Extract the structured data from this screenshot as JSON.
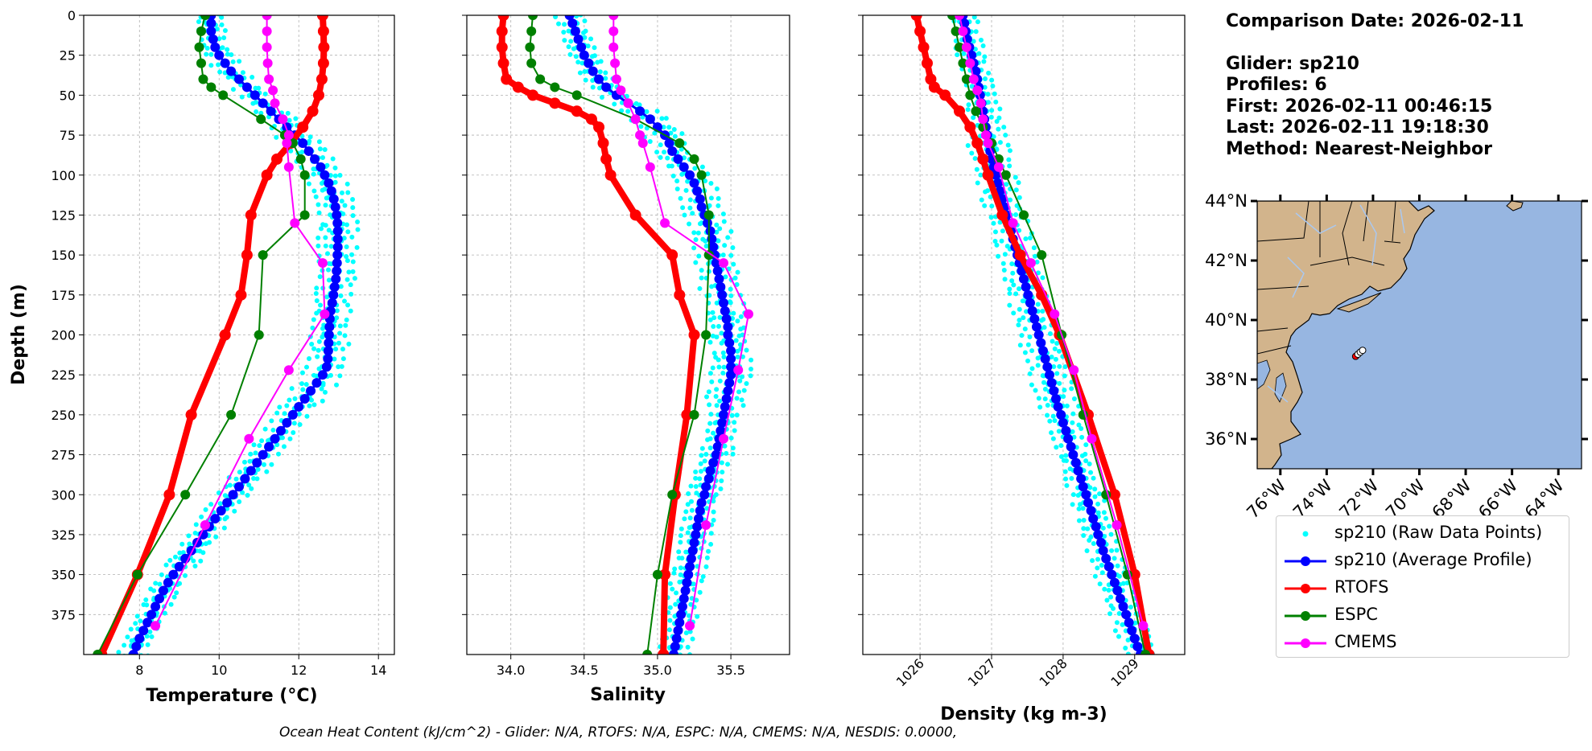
{
  "info": {
    "comparison": "Comparison Date: 2026-02-11",
    "glider": "Glider: sp210",
    "profiles": "Profiles: 6",
    "first": "First: 2026-02-11 00:46:15",
    "last": "Last: 2026-02-11 19:18:30",
    "method": "Method: Nearest-Neighbor"
  },
  "footer": "Ocean Heat Content (kJ/cm^2) - Glider: N/A,  RTOFS: N/A,  ESPC: N/A,  CMEMS: N/A,  NESDIS: 0.0000,",
  "colors": {
    "raw": "#00ffff",
    "glider": "#0000ff",
    "rtofs": "#ff0000",
    "espc": "#008000",
    "cmems": "#ff00ff",
    "land": "#d2b48c",
    "ocean": "#97b6e1",
    "rivers": "#aac8f0"
  },
  "legend": [
    {
      "key": "raw",
      "label": "sp210 (Raw Data Points)",
      "style": "dots"
    },
    {
      "key": "glider",
      "label": "sp210 (Average Profile)",
      "style": "line"
    },
    {
      "key": "rtofs",
      "label": "RTOFS",
      "style": "line"
    },
    {
      "key": "espc",
      "label": "ESPC",
      "style": "line"
    },
    {
      "key": "cmems",
      "label": "CMEMS",
      "style": "line"
    }
  ],
  "chart_data": [
    {
      "type": "line",
      "xlabel": "Temperature (°C)",
      "ylabel": "Depth (m)",
      "xlim": [
        6.6,
        14.4
      ],
      "ylim": [
        400,
        0
      ],
      "xticks": [
        8,
        10,
        12,
        14
      ],
      "yticks": [
        0,
        25,
        50,
        75,
        100,
        125,
        150,
        175,
        200,
        225,
        250,
        275,
        300,
        325,
        350,
        375
      ],
      "grid": true,
      "series": [
        {
          "name": "sp210 (Average Profile)",
          "key": "glider",
          "width": 3,
          "marker": 6,
          "depth": [
            0,
            5,
            10,
            15,
            20,
            25,
            30,
            35,
            40,
            45,
            50,
            55,
            60,
            65,
            70,
            75,
            80,
            85,
            90,
            95,
            100,
            105,
            110,
            115,
            120,
            125,
            130,
            135,
            140,
            145,
            150,
            155,
            160,
            165,
            170,
            175,
            180,
            185,
            190,
            195,
            200,
            205,
            210,
            215,
            220,
            225,
            230,
            235,
            240,
            245,
            250,
            255,
            260,
            265,
            270,
            275,
            280,
            285,
            290,
            295,
            300,
            305,
            310,
            315,
            320,
            325,
            330,
            335,
            340,
            345,
            350,
            355,
            360,
            365,
            370,
            375,
            380,
            385,
            390,
            395,
            400
          ],
          "values": [
            9.8,
            9.8,
            9.8,
            9.85,
            9.9,
            10.0,
            10.15,
            10.3,
            10.5,
            10.7,
            10.9,
            11.1,
            11.3,
            11.5,
            11.7,
            11.9,
            12.1,
            12.25,
            12.4,
            12.55,
            12.65,
            12.75,
            12.82,
            12.88,
            12.92,
            12.95,
            12.97,
            12.98,
            12.98,
            12.98,
            12.97,
            12.96,
            12.95,
            12.93,
            12.9,
            12.87,
            12.84,
            12.8,
            12.78,
            12.77,
            12.76,
            12.75,
            12.74,
            12.73,
            12.7,
            12.6,
            12.45,
            12.3,
            12.15,
            12.0,
            11.85,
            11.7,
            11.55,
            11.4,
            11.25,
            11.1,
            10.95,
            10.8,
            10.65,
            10.5,
            10.35,
            10.2,
            10.05,
            9.9,
            9.75,
            9.6,
            9.45,
            9.3,
            9.15,
            9.0,
            8.85,
            8.72,
            8.6,
            8.5,
            8.4,
            8.3,
            8.2,
            8.1,
            8.0,
            7.92,
            7.85
          ]
        },
        {
          "name": "RTOFS",
          "key": "rtofs",
          "width": 8,
          "marker": 7,
          "depth": [
            0,
            10,
            20,
            30,
            40,
            50,
            60,
            70,
            80,
            90,
            100,
            125,
            150,
            175,
            200,
            250,
            300,
            350,
            400
          ],
          "values": [
            12.6,
            12.62,
            12.63,
            12.62,
            12.58,
            12.5,
            12.35,
            12.1,
            11.8,
            11.45,
            11.2,
            10.8,
            10.7,
            10.55,
            10.15,
            9.3,
            8.75,
            7.95,
            7.05
          ]
        },
        {
          "name": "ESPC",
          "key": "espc",
          "width": 2,
          "marker": 6,
          "depth": [
            0,
            10,
            20,
            30,
            40,
            45,
            50,
            65,
            75,
            80,
            90,
            100,
            125,
            150,
            200,
            250,
            300,
            350,
            400
          ],
          "values": [
            9.65,
            9.55,
            9.5,
            9.55,
            9.6,
            9.8,
            10.1,
            11.05,
            11.65,
            11.85,
            12.05,
            12.15,
            12.15,
            11.1,
            11.0,
            10.3,
            9.15,
            7.95,
            6.95
          ]
        },
        {
          "name": "CMEMS",
          "key": "cmems",
          "width": 2,
          "marker": 6,
          "depth": [
            0,
            10,
            20,
            30,
            40,
            47,
            55,
            65,
            75,
            80,
            95,
            130,
            155,
            187,
            222,
            265,
            319,
            382
          ],
          "values": [
            11.2,
            11.2,
            11.2,
            11.22,
            11.25,
            11.35,
            11.4,
            11.6,
            11.75,
            11.7,
            11.75,
            11.9,
            12.6,
            12.65,
            11.75,
            10.75,
            9.65,
            8.4
          ]
        }
      ]
    },
    {
      "type": "line",
      "xlabel": "Salinity",
      "xlim": [
        33.7,
        35.9
      ],
      "ylim": [
        400,
        0
      ],
      "xticks": [
        34.0,
        34.5,
        35.0,
        35.5
      ],
      "grid": true,
      "series": [
        {
          "name": "sp210 (Average Profile)",
          "key": "glider",
          "width": 3,
          "marker": 6,
          "depth": [
            0,
            5,
            10,
            15,
            20,
            25,
            30,
            35,
            40,
            45,
            50,
            55,
            60,
            65,
            70,
            75,
            80,
            85,
            90,
            95,
            100,
            105,
            110,
            115,
            120,
            125,
            130,
            135,
            140,
            145,
            150,
            155,
            160,
            165,
            170,
            175,
            180,
            185,
            190,
            195,
            200,
            205,
            210,
            215,
            220,
            225,
            230,
            235,
            240,
            245,
            250,
            255,
            260,
            265,
            270,
            275,
            280,
            285,
            290,
            295,
            300,
            305,
            310,
            315,
            320,
            325,
            330,
            335,
            340,
            345,
            350,
            355,
            360,
            365,
            370,
            375,
            380,
            385,
            390,
            395,
            400
          ],
          "values": [
            34.4,
            34.42,
            34.44,
            34.46,
            34.48,
            34.5,
            34.53,
            34.56,
            34.6,
            34.65,
            34.72,
            34.8,
            34.88,
            34.95,
            35.0,
            35.05,
            35.08,
            35.1,
            35.14,
            35.18,
            35.22,
            35.25,
            35.27,
            35.29,
            35.3,
            35.32,
            35.34,
            35.36,
            35.37,
            35.38,
            35.39,
            35.4,
            35.41,
            35.42,
            35.43,
            35.44,
            35.45,
            35.46,
            35.47,
            35.48,
            35.48,
            35.49,
            35.5,
            35.5,
            35.5,
            35.5,
            35.49,
            35.48,
            35.47,
            35.46,
            35.45,
            35.44,
            35.43,
            35.42,
            35.41,
            35.4,
            35.38,
            35.36,
            35.35,
            35.33,
            35.32,
            35.3,
            35.29,
            35.28,
            35.27,
            35.26,
            35.25,
            35.24,
            35.23,
            35.22,
            35.21,
            35.2,
            35.19,
            35.18,
            35.17,
            35.16,
            35.15,
            35.14,
            35.13,
            35.12,
            35.11
          ]
        },
        {
          "name": "RTOFS",
          "key": "rtofs",
          "width": 8,
          "marker": 7,
          "depth": [
            0,
            10,
            20,
            30,
            40,
            45,
            50,
            55,
            60,
            65,
            70,
            80,
            90,
            100,
            125,
            150,
            175,
            200,
            250,
            300,
            350,
            400
          ],
          "values": [
            33.95,
            33.94,
            33.94,
            33.95,
            33.97,
            34.05,
            34.15,
            34.3,
            34.45,
            34.55,
            34.6,
            34.63,
            34.65,
            34.68,
            34.85,
            35.1,
            35.15,
            35.25,
            35.2,
            35.12,
            35.05,
            35.04
          ]
        },
        {
          "name": "ESPC",
          "key": "espc",
          "width": 2,
          "marker": 6,
          "depth": [
            0,
            10,
            20,
            30,
            40,
            45,
            50,
            65,
            80,
            90,
            100,
            125,
            150,
            200,
            250,
            300,
            350,
            400
          ],
          "values": [
            34.15,
            34.14,
            34.13,
            34.14,
            34.2,
            34.3,
            34.45,
            34.85,
            35.15,
            35.25,
            35.3,
            35.35,
            35.35,
            35.33,
            35.25,
            35.1,
            35.0,
            34.93
          ]
        },
        {
          "name": "CMEMS",
          "key": "cmems",
          "width": 2,
          "marker": 6,
          "depth": [
            0,
            10,
            20,
            30,
            40,
            47,
            55,
            65,
            75,
            80,
            95,
            130,
            155,
            187,
            222,
            265,
            319,
            382
          ],
          "values": [
            34.7,
            34.7,
            34.7,
            34.71,
            34.72,
            34.75,
            34.8,
            34.85,
            34.88,
            34.9,
            34.95,
            35.05,
            35.45,
            35.62,
            35.55,
            35.45,
            35.33,
            35.22
          ]
        }
      ]
    },
    {
      "type": "line",
      "xlabel": "Density (kg m-3)",
      "xlim": [
        1025.2,
        1029.7
      ],
      "ylim": [
        400,
        0
      ],
      "xticks": [
        1026,
        1027,
        1028,
        1029
      ],
      "grid": true,
      "series": [
        {
          "name": "sp210 (Average Profile)",
          "key": "glider",
          "width": 3,
          "marker": 6,
          "depth": [
            0,
            5,
            10,
            15,
            20,
            25,
            30,
            35,
            40,
            45,
            50,
            55,
            60,
            65,
            70,
            75,
            80,
            85,
            90,
            95,
            100,
            105,
            110,
            115,
            120,
            125,
            130,
            135,
            140,
            145,
            150,
            155,
            160,
            165,
            170,
            175,
            180,
            185,
            190,
            195,
            200,
            205,
            210,
            215,
            220,
            225,
            230,
            235,
            240,
            245,
            250,
            255,
            260,
            265,
            270,
            275,
            280,
            285,
            290,
            295,
            300,
            305,
            310,
            315,
            320,
            325,
            330,
            335,
            340,
            345,
            350,
            355,
            360,
            365,
            370,
            375,
            380,
            385,
            390,
            395,
            400
          ],
          "values": [
            1026.6,
            1026.62,
            1026.64,
            1026.66,
            1026.69,
            1026.72,
            1026.75,
            1026.78,
            1026.8,
            1026.82,
            1026.84,
            1026.86,
            1026.88,
            1026.9,
            1026.92,
            1026.94,
            1026.96,
            1026.98,
            1027.0,
            1027.03,
            1027.06,
            1027.09,
            1027.12,
            1027.15,
            1027.18,
            1027.21,
            1027.24,
            1027.27,
            1027.3,
            1027.33,
            1027.36,
            1027.39,
            1027.42,
            1027.45,
            1027.48,
            1027.51,
            1027.54,
            1027.57,
            1027.6,
            1027.63,
            1027.66,
            1027.69,
            1027.72,
            1027.75,
            1027.78,
            1027.81,
            1027.84,
            1027.87,
            1027.9,
            1027.93,
            1027.97,
            1028.0,
            1028.04,
            1028.07,
            1028.11,
            1028.14,
            1028.18,
            1028.21,
            1028.25,
            1028.28,
            1028.32,
            1028.35,
            1028.39,
            1028.42,
            1028.46,
            1028.49,
            1028.53,
            1028.56,
            1028.6,
            1028.64,
            1028.68,
            1028.72,
            1028.76,
            1028.8,
            1028.84,
            1028.88,
            1028.92,
            1028.96,
            1029.0,
            1029.04,
            1029.08
          ]
        },
        {
          "name": "RTOFS",
          "key": "rtofs",
          "width": 8,
          "marker": 7,
          "depth": [
            0,
            10,
            20,
            30,
            40,
            45,
            50,
            60,
            70,
            80,
            90,
            100,
            125,
            150,
            175,
            200,
            250,
            300,
            350,
            400
          ],
          "values": [
            1025.95,
            1026.0,
            1026.05,
            1026.1,
            1026.15,
            1026.2,
            1026.35,
            1026.55,
            1026.7,
            1026.8,
            1026.88,
            1026.95,
            1027.15,
            1027.4,
            1027.7,
            1027.95,
            1028.35,
            1028.72,
            1029.0,
            1029.2
          ]
        },
        {
          "name": "ESPC",
          "key": "espc",
          "width": 2,
          "marker": 6,
          "depth": [
            0,
            10,
            20,
            30,
            40,
            50,
            60,
            70,
            80,
            90,
            100,
            125,
            150,
            200,
            250,
            300,
            350,
            400
          ],
          "values": [
            1026.45,
            1026.5,
            1026.55,
            1026.6,
            1026.65,
            1026.7,
            1026.78,
            1026.88,
            1027.0,
            1027.1,
            1027.2,
            1027.45,
            1027.7,
            1027.98,
            1028.28,
            1028.6,
            1028.9,
            1029.15
          ]
        },
        {
          "name": "CMEMS",
          "key": "cmems",
          "width": 2,
          "marker": 6,
          "depth": [
            0,
            10,
            20,
            30,
            40,
            47,
            55,
            65,
            75,
            80,
            95,
            130,
            155,
            187,
            222,
            265,
            319,
            382
          ],
          "values": [
            1026.55,
            1026.6,
            1026.65,
            1026.7,
            1026.75,
            1026.8,
            1026.85,
            1026.88,
            1026.92,
            1026.95,
            1027.1,
            1027.3,
            1027.55,
            1027.88,
            1028.15,
            1028.4,
            1028.75,
            1029.12
          ]
        }
      ]
    }
  ],
  "map": {
    "lon_range": [
      -77,
      -63
    ],
    "lat_range": [
      35,
      44
    ],
    "lon_ticks": [
      "76°W",
      "74°W",
      "72°W",
      "70°W",
      "68°W",
      "66°W",
      "64°W"
    ],
    "lon_values": [
      -76,
      -74,
      -72,
      -70,
      -68,
      -66,
      -64
    ],
    "lat_ticks": [
      "36°N",
      "38°N",
      "40°N",
      "42°N",
      "44°N"
    ],
    "lat_values": [
      36,
      38,
      40,
      42,
      44
    ],
    "glider_positions": [
      [
        -72.75,
        38.78
      ],
      [
        -72.65,
        38.85
      ],
      [
        -72.55,
        38.92
      ],
      [
        -72.45,
        38.98
      ]
    ]
  }
}
